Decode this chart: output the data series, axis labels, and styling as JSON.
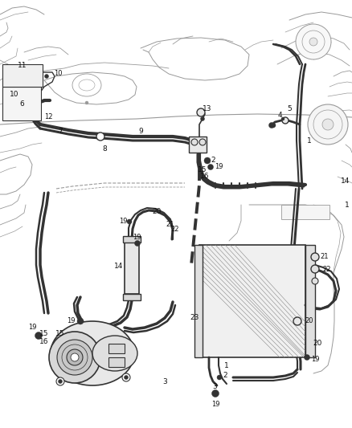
{
  "bg_color": "#ffffff",
  "lc": "#333333",
  "sk": "#999999",
  "fig_w": 4.38,
  "fig_h": 5.33,
  "dpi": 100
}
